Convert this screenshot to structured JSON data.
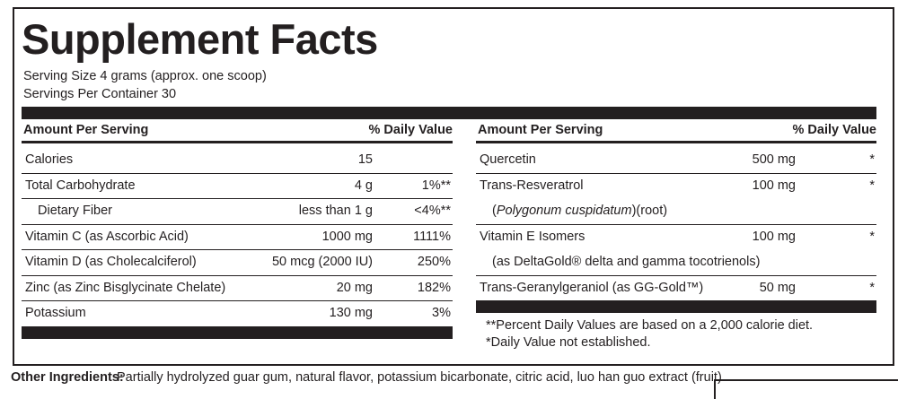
{
  "title": "Supplement Facts",
  "serving_size": "Serving Size 4 grams (approx. one scoop)",
  "servings_per_container": "Servings Per Container 30",
  "left_table": {
    "header": [
      "Amount Per Serving",
      "% Daily Value"
    ],
    "rows": [
      {
        "name": "Calories",
        "amount": "15"
      },
      {
        "name": "Total Carbohydrate",
        "amount": "4 g",
        "dv": "1%**"
      },
      {
        "name": "Dietary Fiber",
        "amount": "less than 1 g",
        "dv": "<4%**"
      },
      {
        "name": "Vitamin C (as Ascorbic Acid)",
        "amount": "1000 mg",
        "dv": "1111%"
      },
      {
        "name": "Vitamin D (as Cholecalciferol)",
        "amount": "50 mcg (2000 IU)",
        "dv": "250%"
      },
      {
        "name": "Zinc (as Zinc Bisglycinate Chelate)",
        "amount": "20 mg",
        "dv": "182%"
      },
      {
        "name": "Potassium",
        "amount": "130 mg",
        "dv": "3%"
      }
    ]
  },
  "right_table": {
    "header": [
      "Amount Per Serving",
      "% Daily Value"
    ],
    "rows": [
      {
        "name": "Quercetin",
        "amount": "500 mg",
        "dv": "*"
      },
      {
        "name": "Trans-Resveratrol",
        "amount": "100 mg",
        "dv": "*",
        "note": [
          "(",
          "Polygonum cuspidatum",
          ")(root)"
        ]
      },
      {
        "name": "Vitamin E Isomers",
        "amount": "100 mg",
        "dv": "*",
        "note": [
          "(as DeltaGold® delta and gamma tocotrienols)"
        ]
      },
      {
        "name": "Trans-Geranylgeraniol (as GG-Gold™)",
        "amount": "50 mg",
        "dv": "*"
      }
    ],
    "footnotes": [
      "**Percent Daily Values are based on a 2,000 calorie diet.",
      "*Daily Value not established."
    ]
  },
  "other_ingredients": {
    "label": "Other Ingredients:",
    "text": "Partially hydrolyzed guar gum, natural flavor, potassium bicarbonate, citric acid, luo han guo extract (fruit)."
  }
}
